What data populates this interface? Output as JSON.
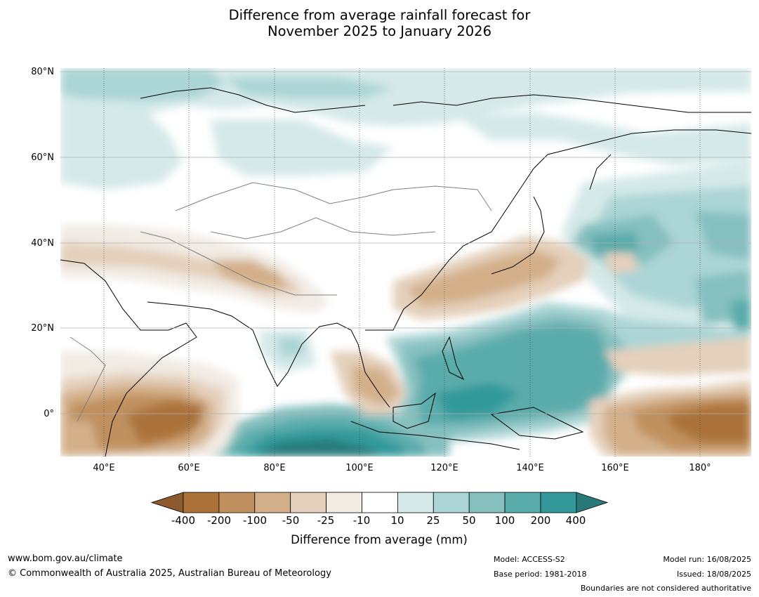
{
  "title": {
    "line1": "Difference from average rainfall forecast for",
    "line2": "November 2025 to January 2026"
  },
  "map": {
    "region": "Asia and Western Pacific",
    "lat_ticks": [
      "80°N",
      "60°N",
      "40°N",
      "20°N",
      "0°"
    ],
    "lon_ticks": [
      "40°E",
      "60°E",
      "80°E",
      "100°E",
      "120°E",
      "140°E",
      "160°E",
      "180°"
    ]
  },
  "colorbar": {
    "labels": [
      "-400",
      "-200",
      "-100",
      "-50",
      "-25",
      "-10",
      "10",
      "25",
      "50",
      "100",
      "200",
      "400"
    ],
    "colors": [
      "#8c5a2e",
      "#ab733a",
      "#c0915e",
      "#d3b08a",
      "#e4d0bb",
      "#f1ebe4",
      "#ffffff",
      "#d4e9e8",
      "#acd5d5",
      "#85c0bf",
      "#5aacab",
      "#33999a",
      "#277a79"
    ],
    "title": "Difference from average (mm)"
  },
  "footer": {
    "url": "www.bom.gov.au/climate",
    "copyright": "© Commonwealth of Australia 2025, Australian Bureau of Meteorology",
    "model": "Model: ACCESS-S2",
    "base_period": "Base period: 1981-2018",
    "model_run": "Model run: 16/08/2025",
    "issued": "Issued: 18/08/2025",
    "disclaimer": "Boundaries are not considered authoritative"
  }
}
